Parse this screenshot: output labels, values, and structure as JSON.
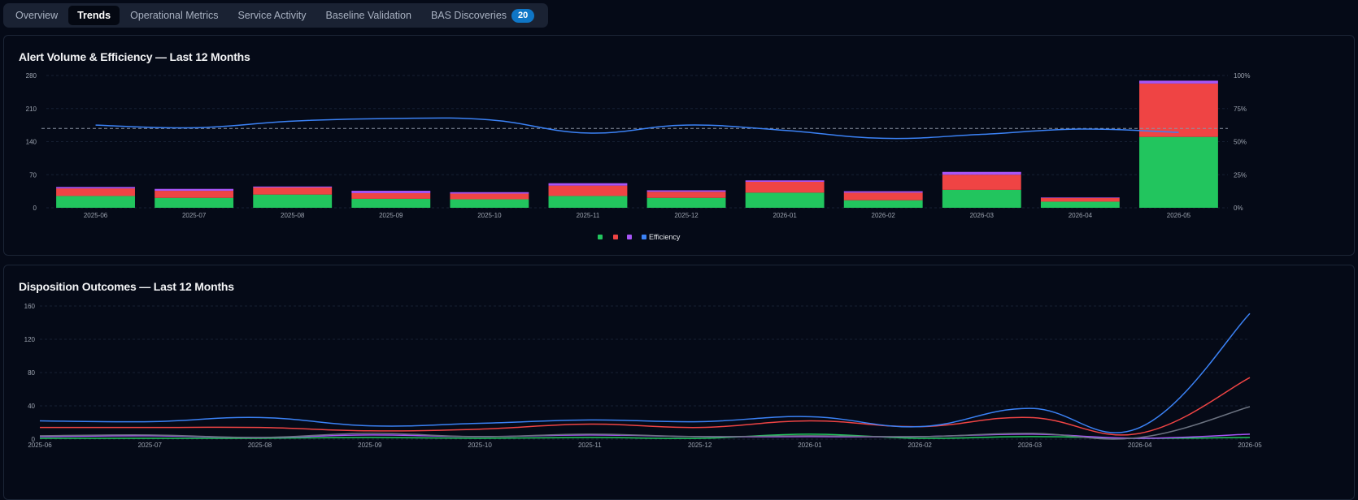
{
  "tabs": [
    {
      "label": "Overview",
      "active": false
    },
    {
      "label": "Trends",
      "active": true
    },
    {
      "label": "Operational Metrics",
      "active": false
    },
    {
      "label": "Service Activity",
      "active": false
    },
    {
      "label": "Baseline Validation",
      "active": false
    },
    {
      "label": "BAS Discoveries",
      "active": false,
      "badge": "20"
    }
  ],
  "colors": {
    "green": "#22c55e",
    "red": "#ef4444",
    "purple": "#a855f7",
    "blue": "#3b82f6",
    "gray": "#6b7280"
  },
  "chart_data": [
    {
      "type": "bar",
      "title": "Alert Volume & Efficiency — Last 12 Months",
      "categories": [
        "2025-06",
        "2025-07",
        "2025-08",
        "2025-09",
        "2025-10",
        "2025-11",
        "2025-12",
        "2026-01",
        "2026-02",
        "2026-03",
        "2026-04",
        "2026-05"
      ],
      "stacked": true,
      "series": [
        {
          "name": "",
          "color": "#22c55e",
          "values": [
            25,
            21,
            28,
            19,
            18,
            25,
            21,
            32,
            16,
            38,
            13,
            150
          ]
        },
        {
          "name": "",
          "color": "#ef4444",
          "values": [
            16,
            15,
            15,
            12,
            12,
            22,
            13,
            23,
            16,
            32,
            8,
            113
          ]
        },
        {
          "name": "",
          "color": "#a855f7",
          "values": [
            3,
            4,
            2,
            5,
            3,
            5,
            3,
            3,
            3,
            6,
            1,
            6
          ]
        }
      ],
      "line_series": {
        "name": "Efficiency",
        "color": "#3b82f6",
        "axis": "right",
        "values": [
          62.5,
          60.5,
          65.5,
          67.5,
          66.5,
          56.5,
          62.5,
          58.5,
          52.5,
          55.5,
          59.5,
          57.0
        ]
      },
      "reference_line": {
        "axis": "right",
        "value": 60,
        "dashed": true
      },
      "yticks_left": [
        "0",
        "70",
        "140",
        "210",
        "280"
      ],
      "ylim_left": [
        0,
        280
      ],
      "yticks_right": [
        "0%",
        "25%",
        "50%",
        "75%",
        "100%"
      ],
      "ylim_right": [
        0,
        100
      ],
      "legend": [
        "",
        "",
        "",
        "Efficiency"
      ],
      "legend_position": "bottom-center",
      "grid": true
    },
    {
      "type": "line",
      "title": "Disposition Outcomes — Last 12 Months",
      "x": [
        "2025-06",
        "2025-07",
        "2025-08",
        "2025-09",
        "2025-10",
        "2025-11",
        "2025-12",
        "2026-01",
        "2026-02",
        "2026-03",
        "2026-04",
        "2026-05"
      ],
      "series": [
        {
          "name": "",
          "color": "#3b82f6",
          "values": [
            22,
            21,
            26,
            16,
            19,
            23,
            21,
            27,
            15,
            37,
            14,
            151
          ]
        },
        {
          "name": "",
          "color": "#ef4444",
          "values": [
            14,
            14,
            14,
            10,
            12,
            18,
            14,
            22,
            15,
            26,
            7,
            74
          ]
        },
        {
          "name": "",
          "color": "#6b7280",
          "values": [
            4,
            5,
            2,
            7,
            3,
            6,
            3,
            4,
            3,
            7,
            2,
            39
          ]
        },
        {
          "name": "",
          "color": "#a855f7",
          "values": [
            3,
            4,
            2,
            5,
            3,
            5,
            3,
            3,
            3,
            6,
            1,
            6
          ]
        },
        {
          "name": "",
          "color": "#22c55e",
          "values": [
            1,
            1,
            1,
            2,
            1,
            2,
            1,
            6,
            1,
            3,
            1,
            2
          ]
        }
      ],
      "yticks": [
        "0",
        "40",
        "80",
        "120",
        "160"
      ],
      "ylim": [
        0,
        160
      ],
      "grid": true
    }
  ]
}
